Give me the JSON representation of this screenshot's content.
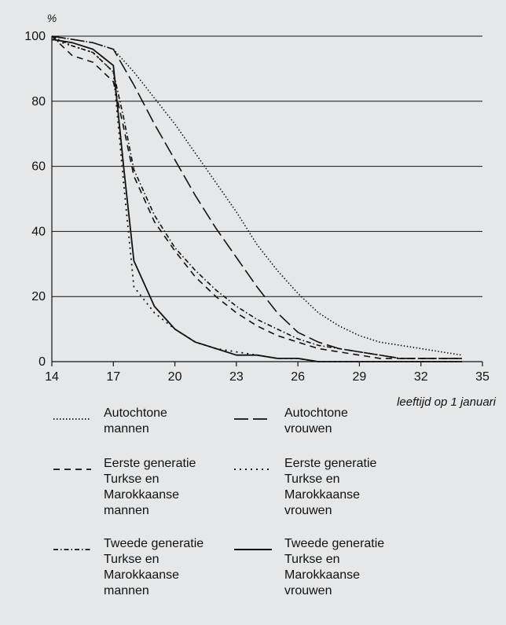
{
  "chart_data": {
    "type": "line",
    "title": "",
    "ylabel": "%",
    "xlabel": "leeftijd op 1 januari",
    "xlim": [
      14,
      35
    ],
    "ylim": [
      0,
      100
    ],
    "x_ticks": [
      14,
      17,
      20,
      23,
      26,
      29,
      32,
      35
    ],
    "y_ticks": [
      0,
      20,
      40,
      60,
      80,
      100
    ],
    "grid": "horizontal",
    "legend_position": "bottom",
    "series": [
      {
        "name": "Autochtone mannen",
        "dash": "dotted",
        "points": [
          [
            14,
            100
          ],
          [
            15,
            99
          ],
          [
            16,
            98
          ],
          [
            17,
            96
          ],
          [
            18,
            89
          ],
          [
            19,
            81
          ],
          [
            20,
            73
          ],
          [
            21,
            64
          ],
          [
            22,
            55
          ],
          [
            23,
            46
          ],
          [
            24,
            36
          ],
          [
            25,
            28
          ],
          [
            26,
            21
          ],
          [
            27,
            15
          ],
          [
            28,
            11
          ],
          [
            29,
            8
          ],
          [
            30,
            6
          ],
          [
            31,
            5
          ],
          [
            32,
            4
          ],
          [
            33,
            3
          ],
          [
            34,
            2
          ]
        ]
      },
      {
        "name": "Autochtone vrouwen",
        "dash": "long-dash",
        "points": [
          [
            14,
            100
          ],
          [
            15,
            99
          ],
          [
            16,
            98
          ],
          [
            17,
            96
          ],
          [
            18,
            85
          ],
          [
            19,
            73
          ],
          [
            20,
            62
          ],
          [
            21,
            51
          ],
          [
            22,
            41
          ],
          [
            23,
            32
          ],
          [
            24,
            23
          ],
          [
            25,
            15
          ],
          [
            26,
            9
          ],
          [
            27,
            6
          ],
          [
            28,
            4
          ],
          [
            29,
            3
          ],
          [
            30,
            2
          ],
          [
            31,
            1
          ],
          [
            32,
            1
          ],
          [
            33,
            1
          ],
          [
            34,
            1
          ]
        ]
      },
      {
        "name": "Eerste generatie Turkse en Marokkaanse mannen",
        "dash": "dashed",
        "points": [
          [
            14,
            100
          ],
          [
            15,
            94
          ],
          [
            16,
            92
          ],
          [
            17,
            86
          ],
          [
            17.5,
            72
          ],
          [
            18,
            57
          ],
          [
            19,
            43
          ],
          [
            20,
            34
          ],
          [
            21,
            26
          ],
          [
            22,
            20
          ],
          [
            23,
            15
          ],
          [
            24,
            11
          ],
          [
            25,
            8
          ],
          [
            26,
            6
          ],
          [
            27,
            4
          ],
          [
            28,
            3
          ],
          [
            29,
            2
          ],
          [
            30,
            1
          ],
          [
            31,
            1
          ],
          [
            32,
            1
          ],
          [
            33,
            1
          ],
          [
            34,
            1
          ]
        ]
      },
      {
        "name": "Eerste generatie Turkse en Marokkaanse vrouwen",
        "dash": "sparse-dotted",
        "points": [
          [
            14,
            99
          ],
          [
            15,
            97
          ],
          [
            16,
            95
          ],
          [
            17,
            89
          ],
          [
            17.5,
            55
          ],
          [
            18,
            23
          ],
          [
            19,
            15
          ],
          [
            20,
            10
          ],
          [
            21,
            6
          ],
          [
            22,
            4
          ],
          [
            23,
            3
          ],
          [
            24,
            2
          ],
          [
            25,
            1
          ],
          [
            26,
            1
          ],
          [
            27,
            0
          ],
          [
            28,
            0
          ],
          [
            29,
            0
          ],
          [
            30,
            0
          ],
          [
            31,
            0
          ],
          [
            32,
            0
          ],
          [
            33,
            0
          ],
          [
            34,
            0
          ]
        ]
      },
      {
        "name": "Tweede generatie Turkse en Marokkaanse mannen",
        "dash": "dash-dot",
        "points": [
          [
            14,
            100
          ],
          [
            15,
            97
          ],
          [
            16,
            95
          ],
          [
            17,
            89
          ],
          [
            17.5,
            75
          ],
          [
            18,
            59
          ],
          [
            19,
            45
          ],
          [
            20,
            35
          ],
          [
            21,
            28
          ],
          [
            22,
            22
          ],
          [
            23,
            17
          ],
          [
            24,
            13
          ],
          [
            25,
            10
          ],
          [
            26,
            7
          ],
          [
            27,
            5
          ],
          [
            28,
            4
          ],
          [
            29,
            3
          ],
          [
            30,
            2
          ],
          [
            31,
            1
          ],
          [
            32,
            1
          ],
          [
            33,
            1
          ],
          [
            34,
            1
          ]
        ]
      },
      {
        "name": "Tweede generatie Turkse en Marokkaanse vrouwen",
        "dash": "solid",
        "points": [
          [
            14,
            99
          ],
          [
            15,
            98
          ],
          [
            16,
            96
          ],
          [
            17,
            91
          ],
          [
            17.5,
            60
          ],
          [
            18,
            31
          ],
          [
            19,
            17
          ],
          [
            20,
            10
          ],
          [
            21,
            6
          ],
          [
            22,
            4
          ],
          [
            23,
            2
          ],
          [
            24,
            2
          ],
          [
            25,
            1
          ],
          [
            26,
            1
          ],
          [
            27,
            0
          ],
          [
            28,
            0
          ],
          [
            29,
            0
          ],
          [
            30,
            0
          ],
          [
            31,
            0
          ],
          [
            32,
            0
          ],
          [
            33,
            0
          ],
          [
            34,
            0
          ]
        ]
      }
    ],
    "legend": [
      {
        "line1": "Autochtone",
        "line2": "mannen",
        "line3": "",
        "line4": "",
        "dash": "dotted"
      },
      {
        "line1": "Autochtone",
        "line2": "vrouwen",
        "line3": "",
        "line4": "",
        "dash": "long-dash"
      },
      {
        "line1": "Eerste generatie",
        "line2": "Turkse en",
        "line3": "Marokkaanse",
        "line4": "mannen",
        "dash": "dashed"
      },
      {
        "line1": "Eerste generatie",
        "line2": "Turkse en",
        "line3": "Marokkaanse",
        "line4": "vrouwen",
        "dash": "sparse-dotted"
      },
      {
        "line1": "Tweede generatie",
        "line2": "Turkse en",
        "line3": "Marokkaanse",
        "line4": "mannen",
        "dash": "dash-dot"
      },
      {
        "line1": "Tweede generatie",
        "line2": "Turkse en",
        "line3": "Marokkaanse",
        "line4": "vrouwen",
        "dash": "solid"
      }
    ],
    "colors": {
      "background": "#e6e7e8",
      "line": "#111111",
      "grid": "#111111"
    }
  }
}
